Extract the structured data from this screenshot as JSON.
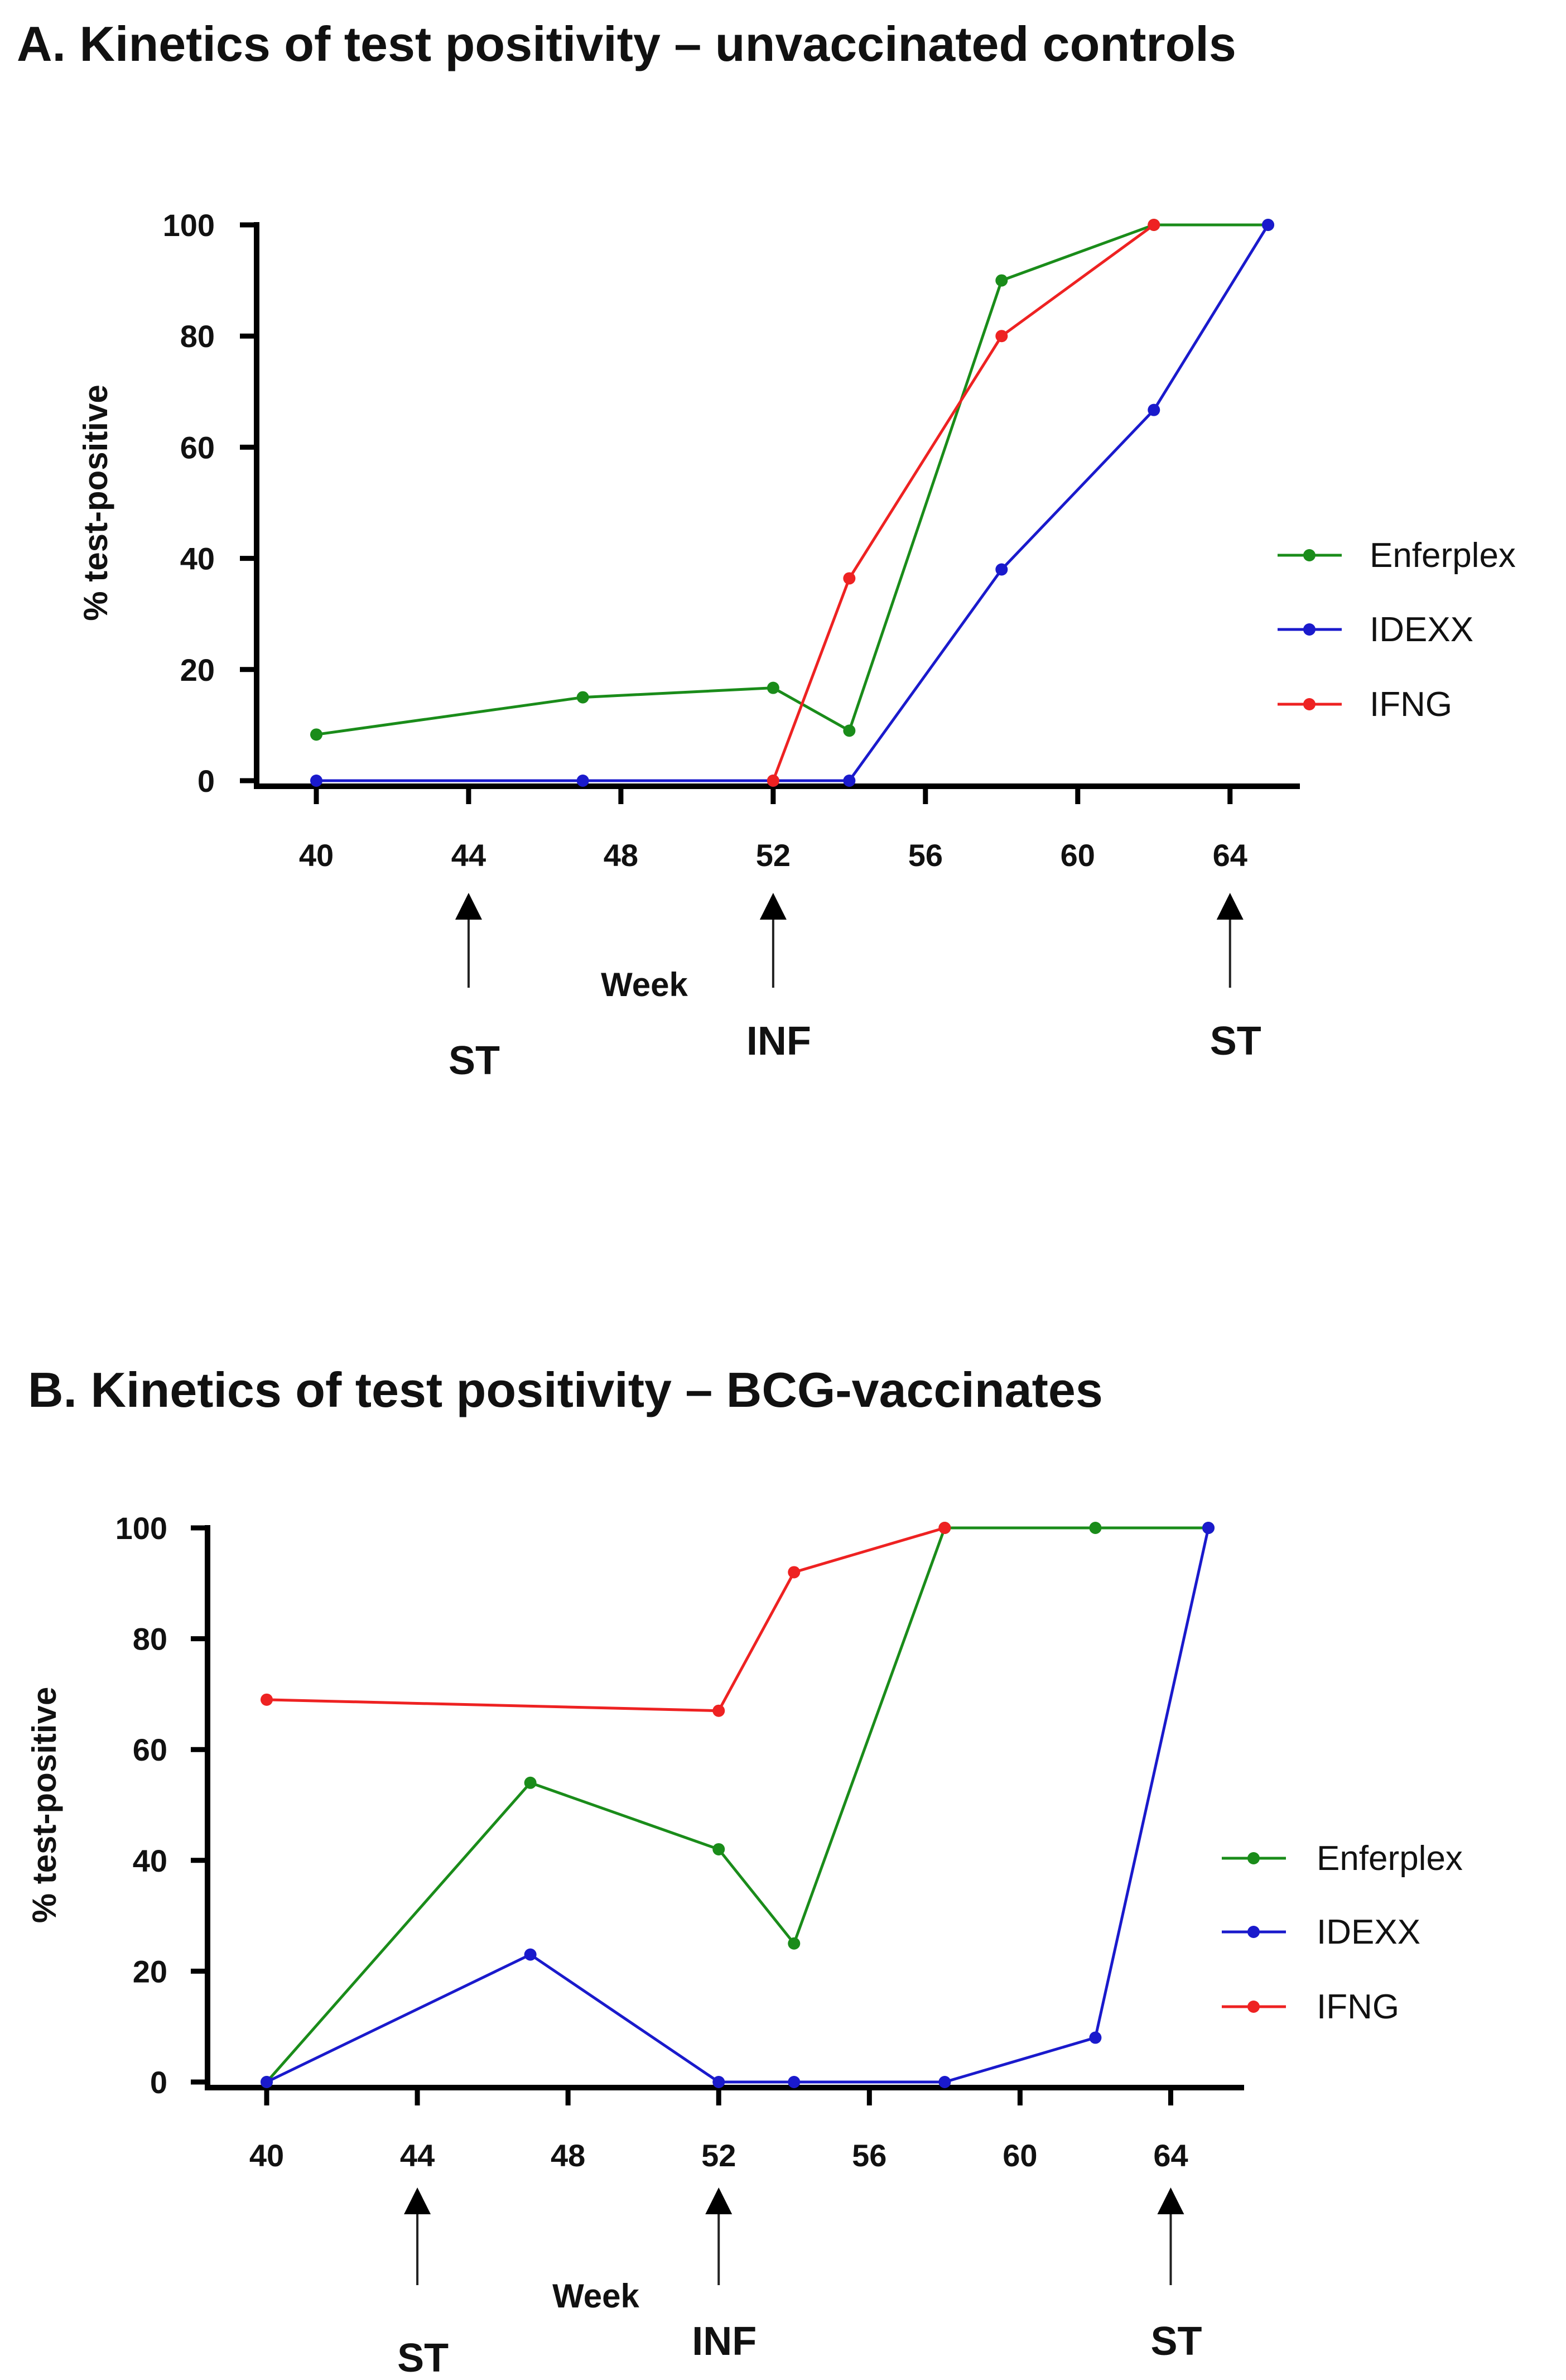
{
  "chart_data": [
    {
      "id": "A",
      "type": "line",
      "title": "A. Kinetics of test positivity – unvaccinated controls",
      "xlabel": "Week",
      "ylabel": "% test-positive",
      "xlim": [
        38,
        66
      ],
      "ylim": [
        0,
        100
      ],
      "xticks": [
        40,
        44,
        48,
        52,
        56,
        60,
        64
      ],
      "yticks": [
        0,
        20,
        40,
        60,
        80,
        100
      ],
      "legend_position": "right",
      "series": [
        {
          "name": "Enferplex",
          "color": "#1a8c1a",
          "x": [
            40,
            47,
            52,
            54,
            58,
            62,
            65
          ],
          "y": [
            8.3,
            15,
            16.7,
            9,
            90,
            100,
            100
          ]
        },
        {
          "name": "IDEXX",
          "color": "#1a1acc",
          "x": [
            40,
            47,
            52,
            54,
            58,
            62,
            65
          ],
          "y": [
            0,
            0,
            0,
            0,
            38,
            66.7,
            100
          ]
        },
        {
          "name": "IFNG",
          "color": "#ee2222",
          "x": [
            52,
            54,
            58,
            62
          ],
          "y": [
            0,
            36.4,
            80,
            100
          ]
        }
      ],
      "annotations": [
        {
          "label": "ST",
          "x": 44
        },
        {
          "label": "INF",
          "x": 52
        },
        {
          "label": "ST",
          "x": 64
        }
      ]
    },
    {
      "id": "B",
      "type": "line",
      "title": "B. Kinetics of test positivity – BCG-vaccinates",
      "xlabel": "Week",
      "ylabel": "% test-positive",
      "xlim": [
        38,
        66
      ],
      "ylim": [
        0,
        100
      ],
      "xticks": [
        40,
        44,
        48,
        52,
        56,
        60,
        64
      ],
      "yticks": [
        0,
        20,
        40,
        60,
        80,
        100
      ],
      "legend_position": "right",
      "series": [
        {
          "name": "Enferplex",
          "color": "#1a8c1a",
          "x": [
            40,
            47,
            52,
            54,
            58,
            62,
            65
          ],
          "y": [
            0,
            54,
            42,
            25,
            100,
            100,
            100
          ]
        },
        {
          "name": "IDEXX",
          "color": "#1a1acc",
          "x": [
            40,
            47,
            52,
            54,
            58,
            62,
            65
          ],
          "y": [
            0,
            23,
            0,
            0,
            0,
            8,
            100
          ]
        },
        {
          "name": "IFNG",
          "color": "#ee2222",
          "x": [
            40,
            52,
            54,
            58
          ],
          "y": [
            69,
            67,
            92,
            100
          ]
        }
      ],
      "annotations": [
        {
          "label": "ST",
          "x": 44
        },
        {
          "label": "INF",
          "x": 52
        },
        {
          "label": "ST",
          "x": 64
        }
      ]
    }
  ]
}
